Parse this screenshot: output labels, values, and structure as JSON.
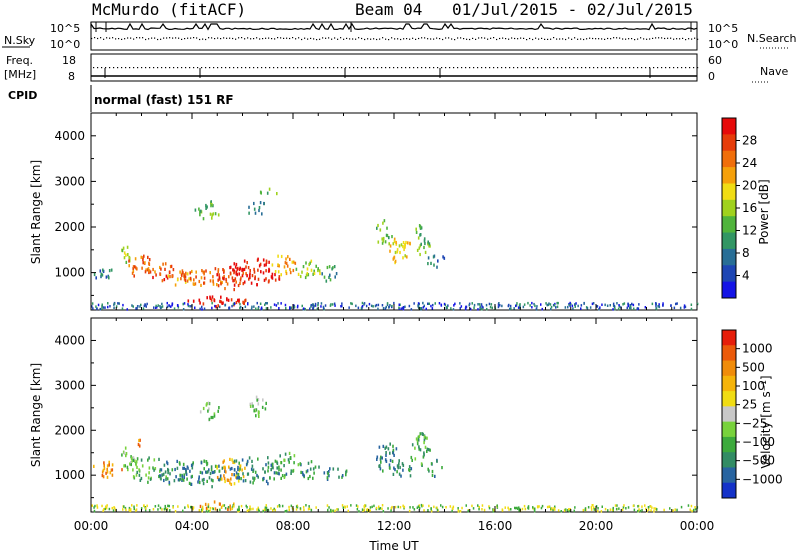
{
  "header": {
    "station": "McMurdo (fitACF)",
    "beam": "Beam 04",
    "dates": "01/Jul/2015 - 02/Jul/2015"
  },
  "top_panels": {
    "nsky_label": "N.Sky",
    "nsky_top": "10^5",
    "nsky_bottom": "10^0",
    "nsearch_label": "N.Search",
    "nsearch_top": "10^5",
    "nsearch_bottom": "10^0",
    "freq_label_1": "Freq.",
    "freq_label_2": "[MHz]",
    "freq_top": "18",
    "freq_bottom": "8",
    "nave_label": "Nave",
    "nave_top": "60",
    "nave_bottom": "0",
    "cpid_label": "CPID",
    "cpid_text": "normal (fast) 151 RF"
  },
  "chart_data": [
    {
      "type": "heatmap",
      "name": "power",
      "xlabel": "",
      "ylabel": "Slant Range [km]",
      "xlim": [
        0,
        24
      ],
      "ylim": [
        180,
        4500
      ],
      "y_ticks": [
        "1000",
        "2000",
        "3000",
        "4000"
      ],
      "colorbar": {
        "label": "Power [dB]",
        "ticks": [
          "4",
          "8",
          "12",
          "16",
          "20",
          "24",
          "28"
        ],
        "colors": [
          "#1414e6",
          "#1e46b4",
          "#286e96",
          "#329664",
          "#50b43c",
          "#a0d21e",
          "#f0dc14",
          "#f5a00a",
          "#f06e0a",
          "#e63c0a",
          "#e60a0a"
        ]
      },
      "blobs": [
        {
          "t": 0.5,
          "r": 1000,
          "dt": 0.5,
          "dr": 120,
          "level": 2
        },
        {
          "t": 1.4,
          "r": 1450,
          "dt": 0.25,
          "dr": 200,
          "level": 5
        },
        {
          "t": 2.0,
          "r": 1150,
          "dt": 0.7,
          "dr": 260,
          "level": 8
        },
        {
          "t": 2.8,
          "r": 1050,
          "dt": 0.5,
          "dr": 220,
          "level": 9
        },
        {
          "t": 3.5,
          "r": 900,
          "dt": 0.5,
          "dr": 180,
          "level": 7
        },
        {
          "t": 4.5,
          "r": 950,
          "dt": 1.0,
          "dr": 200,
          "level": 8
        },
        {
          "t": 5.5,
          "r": 900,
          "dt": 0.7,
          "dr": 250,
          "level": 9
        },
        {
          "t": 6.5,
          "r": 1050,
          "dt": 1.1,
          "dr": 300,
          "level": 10
        },
        {
          "t": 7.6,
          "r": 1200,
          "dt": 0.5,
          "dr": 220,
          "level": 7
        },
        {
          "t": 5.0,
          "r": 400,
          "dt": 1.2,
          "dr": 120,
          "level": 10
        },
        {
          "t": 8.6,
          "r": 1100,
          "dt": 0.5,
          "dr": 200,
          "level": 5
        },
        {
          "t": 9.5,
          "r": 1000,
          "dt": 0.4,
          "dr": 180,
          "level": 3
        },
        {
          "t": 4.6,
          "r": 2400,
          "dt": 0.5,
          "dr": 200,
          "level": 4
        },
        {
          "t": 6.5,
          "r": 2450,
          "dt": 0.4,
          "dr": 180,
          "level": 3
        },
        {
          "t": 7.0,
          "r": 2800,
          "dt": 0.5,
          "dr": 80,
          "level": 4
        },
        {
          "t": 11.6,
          "r": 1900,
          "dt": 0.4,
          "dr": 280,
          "level": 4
        },
        {
          "t": 12.2,
          "r": 1500,
          "dt": 0.5,
          "dr": 300,
          "level": 6
        },
        {
          "t": 13.1,
          "r": 1750,
          "dt": 0.35,
          "dr": 350,
          "level": 4
        },
        {
          "t": 13.6,
          "r": 1300,
          "dt": 0.4,
          "dr": 150,
          "level": 2
        }
      ]
    },
    {
      "type": "heatmap",
      "name": "velocity",
      "xlabel": "Time UT",
      "ylabel": "Slant Range [km]",
      "xlim": [
        0,
        24
      ],
      "ylim": [
        180,
        4500
      ],
      "x_ticks": [
        "00:00",
        "04:00",
        "08:00",
        "12:00",
        "16:00",
        "20:00",
        "00:00"
      ],
      "y_ticks": [
        "1000",
        "2000",
        "3000",
        "4000"
      ],
      "colorbar": {
        "label": "Velocity [m s⁻¹]",
        "ticks": [
          "1000",
          "500",
          "100",
          "25",
          "−25",
          "−100",
          "−500",
          "−1000"
        ],
        "colors": [
          "#1432c8",
          "#2864a0",
          "#328c64",
          "#3caa3c",
          "#78d23c",
          "#c8c8c8",
          "#f0dc14",
          "#f5b40a",
          "#f08c0a",
          "#eb5a0a",
          "#e61e0a"
        ]
      },
      "blobs": [
        {
          "t": 0.6,
          "r": 1150,
          "dt": 0.6,
          "dr": 180,
          "level": 8
        },
        {
          "t": 1.4,
          "r": 1400,
          "dt": 0.3,
          "dr": 250,
          "level": 4
        },
        {
          "t": 2.2,
          "r": 1150,
          "dt": 0.9,
          "dr": 280,
          "level": 3
        },
        {
          "t": 3.2,
          "r": 1100,
          "dt": 0.6,
          "dr": 280,
          "level": 2
        },
        {
          "t": 4.4,
          "r": 1050,
          "dt": 1.0,
          "dr": 300,
          "level": 2
        },
        {
          "t": 5.5,
          "r": 1100,
          "dt": 0.6,
          "dr": 300,
          "level": 7
        },
        {
          "t": 6.6,
          "r": 1150,
          "dt": 1.2,
          "dr": 320,
          "level": 2
        },
        {
          "t": 7.7,
          "r": 1250,
          "dt": 0.5,
          "dr": 300,
          "level": 3
        },
        {
          "t": 8.6,
          "r": 1150,
          "dt": 0.5,
          "dr": 220,
          "level": 2
        },
        {
          "t": 9.6,
          "r": 1100,
          "dt": 0.5,
          "dr": 200,
          "level": 2
        },
        {
          "t": 5.0,
          "r": 350,
          "dt": 0.8,
          "dr": 100,
          "level": 8
        },
        {
          "t": 1.8,
          "r": 1750,
          "dt": 0.15,
          "dr": 100,
          "level": 8
        },
        {
          "t": 4.7,
          "r": 2450,
          "dt": 0.4,
          "dr": 200,
          "level": 4
        },
        {
          "t": 6.6,
          "r": 2550,
          "dt": 0.4,
          "dr": 250,
          "level": 4
        },
        {
          "t": 11.7,
          "r": 1400,
          "dt": 0.5,
          "dr": 350,
          "level": 2
        },
        {
          "t": 12.3,
          "r": 1100,
          "dt": 0.4,
          "dr": 200,
          "level": 2
        },
        {
          "t": 13.0,
          "r": 1600,
          "dt": 0.4,
          "dr": 400,
          "level": 3
        },
        {
          "t": 13.6,
          "r": 1200,
          "dt": 0.3,
          "dr": 200,
          "level": 2
        }
      ]
    }
  ]
}
